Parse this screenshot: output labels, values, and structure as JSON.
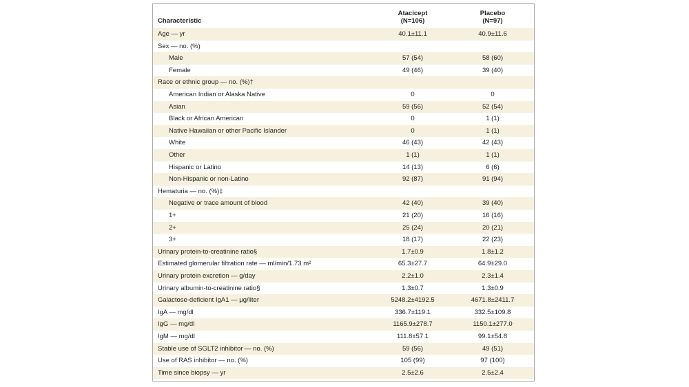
{
  "table": {
    "header": {
      "characteristic": "Characteristic",
      "columns": [
        {
          "name": "Atacicept",
          "n": "(N=106)"
        },
        {
          "name": "Placebo",
          "n": "(N=97)"
        }
      ]
    },
    "rows": [
      {
        "label": "Age — yr",
        "values": [
          "40.1±11.1",
          "40.9±11.6"
        ]
      },
      {
        "label": "Sex — no. (%)",
        "items": [
          {
            "label": "Male",
            "values": [
              "57 (54)",
              "58 (60)"
            ]
          },
          {
            "label": "Female",
            "values": [
              "49 (46)",
              "39 (40)"
            ]
          }
        ]
      },
      {
        "label": "Race or ethnic group — no. (%)†",
        "items": [
          {
            "label": "American Indian or Alaska Native",
            "values": [
              "0",
              "0"
            ]
          },
          {
            "label": "Asian",
            "values": [
              "59 (56)",
              "52 (54)"
            ]
          },
          {
            "label": "Black or African American",
            "values": [
              "0",
              "1 (1)"
            ]
          },
          {
            "label": "Native Hawaiian or other Pacific Islander",
            "values": [
              "0",
              "1 (1)"
            ]
          },
          {
            "label": "White",
            "values": [
              "46 (43)",
              "42 (43)"
            ]
          },
          {
            "label": "Other",
            "values": [
              "1 (1)",
              "1 (1)"
            ]
          },
          {
            "label": "Hispanic or Latino",
            "values": [
              "14 (13)",
              "6 (6)"
            ]
          },
          {
            "label": "Non-Hispanic or non-Latino",
            "values": [
              "92 (87)",
              "91 (94)"
            ]
          }
        ]
      },
      {
        "label": "Hematuria — no. (%)‡",
        "items": [
          {
            "label": "Negative or trace amount of blood",
            "values": [
              "42 (40)",
              "39 (40)"
            ]
          },
          {
            "label": "1+",
            "values": [
              "21 (20)",
              "16 (16)"
            ]
          },
          {
            "label": "2+",
            "values": [
              "25 (24)",
              "20 (21)"
            ]
          },
          {
            "label": "3+",
            "values": [
              "18 (17)",
              "22 (23)"
            ]
          }
        ]
      },
      {
        "label": "Urinary protein-to-creatinine ratio§",
        "values": [
          "1.7±0.9",
          "1.8±1.2"
        ]
      },
      {
        "label": "Estimated glomerular filtration rate — ml/min/1.73 m²",
        "values": [
          "65.3±27.7",
          "64.9±29.0"
        ]
      },
      {
        "label": "Urinary protein excretion — g/day",
        "values": [
          "2.2±1.0",
          "2.3±1.4"
        ]
      },
      {
        "label": "Urinary albumin-to-creatinine ratio§",
        "values": [
          "1.3±0.7",
          "1.3±0.9"
        ]
      },
      {
        "label": "Galactose-deficient IgA1 — μg/liter",
        "values": [
          "5248.2±4192.5",
          "4671.8±2411.7"
        ]
      },
      {
        "label": "IgA — mg/dl",
        "values": [
          "336.7±119.1",
          "332.5±109.8"
        ]
      },
      {
        "label": "IgG — mg/dl",
        "values": [
          "1165.9±278.7",
          "1150.1±277.0"
        ]
      },
      {
        "label": "IgM — mg/dl",
        "values": [
          "111.8±57.1",
          "99.1±54.8"
        ]
      },
      {
        "label": "Stable use of SGLT2 inhibitor — no. (%)",
        "values": [
          "59 (56)",
          "49 (51)"
        ]
      },
      {
        "label": "Use of RAS inhibitor — no. (%)",
        "values": [
          "105 (99)",
          "97 (100)"
        ]
      },
      {
        "label": "Time since biopsy — yr",
        "values": [
          "2.5±2.6",
          "2.5±2.4"
        ]
      }
    ]
  }
}
